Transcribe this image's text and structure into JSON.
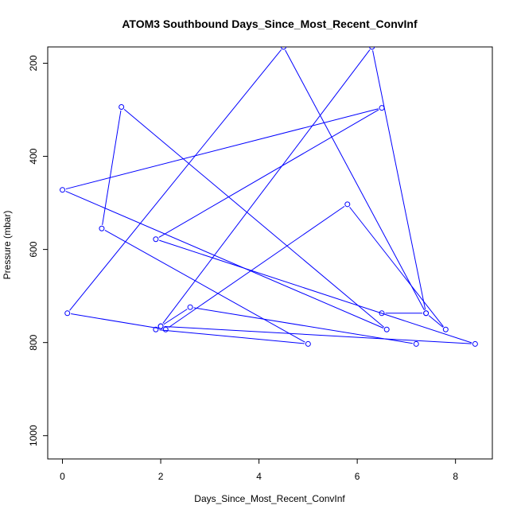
{
  "chart_data": {
    "type": "line",
    "title": "ATOM3 Southbound Days_Since_Most_Recent_ConvInf",
    "xlabel": "Days_Since_Most_Recent_ConvInf",
    "ylabel": "Pressure (mbar)",
    "xlim": [
      -0.3,
      8.75
    ],
    "ylim": [
      1050,
      165
    ],
    "y_reversed": true,
    "x_ticks": [
      0,
      2,
      4,
      6,
      8
    ],
    "y_ticks": [
      200,
      400,
      600,
      800,
      1000
    ],
    "grid": false,
    "legend": "none",
    "color": "#0000ff",
    "series": [
      {
        "x": [
          6.5,
          7.4,
          4.5,
          0.1,
          2.1,
          5.8,
          7.8,
          7.4,
          6.3,
          2.0,
          1.9,
          5.0,
          0.8,
          1.2,
          6.6,
          0.0,
          6.5,
          1.9,
          8.4,
          2.0,
          2.6,
          7.2
        ],
        "y": [
          737,
          737,
          165,
          737,
          772,
          503,
          772,
          737,
          165,
          765,
          772,
          803,
          555,
          294,
          772,
          472,
          296,
          578,
          803,
          765,
          724,
          803
        ]
      }
    ]
  }
}
